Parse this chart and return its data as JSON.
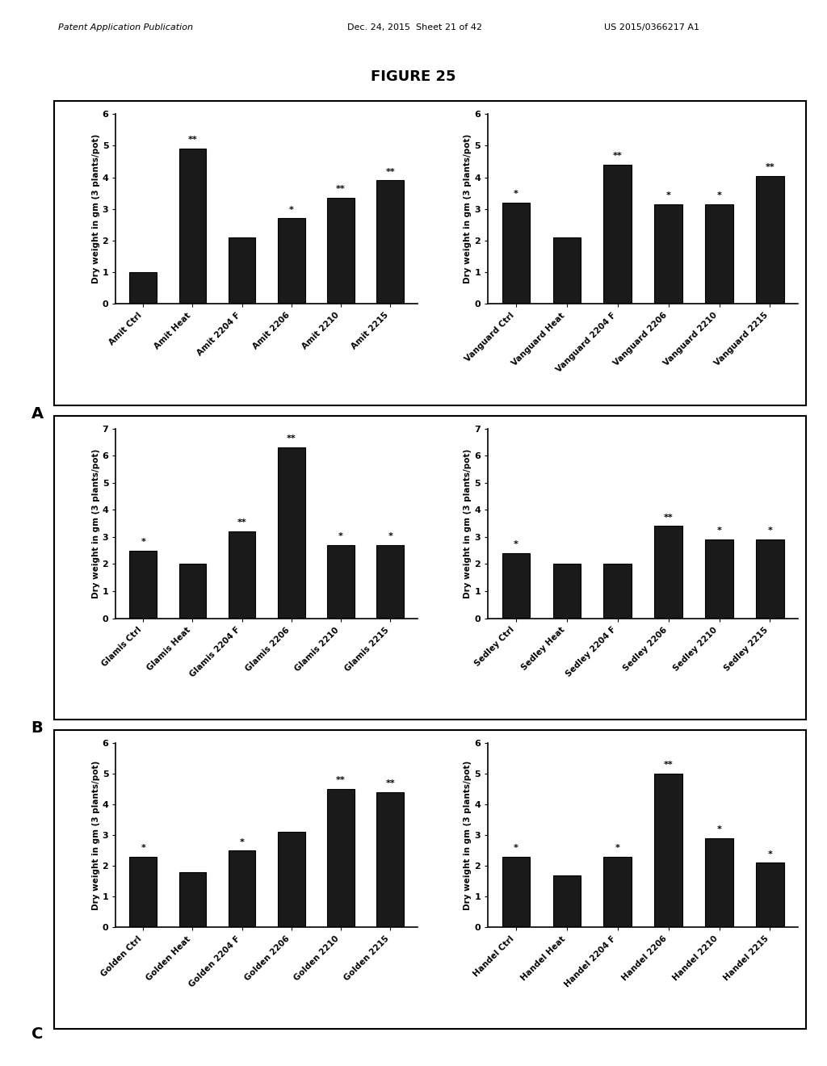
{
  "figure_title": "FIGURE 25",
  "header_left": "Patent Application Publication",
  "header_mid": "Dec. 24, 2015  Sheet 21 of 42",
  "header_right": "US 2015/0366217 A1",
  "subplots": [
    {
      "panel": "A_left",
      "categories": [
        "Amit Ctrl",
        "Amit Heat",
        "Amit 2204 F",
        "Amit 2206",
        "Amit 2210",
        "Amit 2215"
      ],
      "bar_values": [
        1.0,
        4.9,
        2.1,
        2.7,
        3.35,
        3.9
      ],
      "annotations": [
        "",
        "**",
        "",
        "*",
        "**",
        "**"
      ],
      "ylim": [
        0,
        6
      ],
      "yticks": [
        0,
        1,
        2,
        3,
        4,
        5,
        6
      ],
      "ylabel": "Dry weight in gm (3 plants/pot)"
    },
    {
      "panel": "A_right",
      "categories": [
        "Vanguard Ctrl",
        "Vanguard Heat",
        "Vanguard 2204 F",
        "Vanguard 2206",
        "Vanguard 2210",
        "Vanguard 2215"
      ],
      "bar_values": [
        3.2,
        2.1,
        4.4,
        3.15,
        3.15,
        4.05
      ],
      "annotations": [
        "*",
        "",
        "**",
        "*",
        "*",
        "**"
      ],
      "ylim": [
        0,
        6
      ],
      "yticks": [
        0,
        1,
        2,
        3,
        4,
        5,
        6
      ],
      "ylabel": "Dry weight in gm (3 plants/pot)"
    },
    {
      "panel": "B_left",
      "categories": [
        "Glamis Ctrl",
        "Glamis Heat",
        "Glamis 2204 F",
        "Glamis 2206",
        "Glamis 2210",
        "Glamis 2215"
      ],
      "bar_values": [
        2.5,
        2.0,
        3.2,
        6.3,
        2.7,
        2.7
      ],
      "annotations": [
        "*",
        "",
        "**",
        "**",
        "*",
        "*"
      ],
      "ylim": [
        0,
        7
      ],
      "yticks": [
        0,
        1,
        2,
        3,
        4,
        5,
        6,
        7
      ],
      "ylabel": "Dry weight in gm (3 plants/pot)"
    },
    {
      "panel": "B_right",
      "categories": [
        "Sedley Ctrl",
        "Sedley Heat",
        "Sedley 2204 F",
        "Sedley 2206",
        "Sedley 2210",
        "Sedley 2215"
      ],
      "bar_values": [
        2.4,
        2.0,
        2.0,
        3.4,
        2.9,
        2.9
      ],
      "annotations": [
        "*",
        "",
        "",
        "**",
        "*",
        "*"
      ],
      "ylim": [
        0,
        7
      ],
      "yticks": [
        0,
        1,
        2,
        3,
        4,
        5,
        6,
        7
      ],
      "ylabel": "Dry weight in gm (3 plants/pot)"
    },
    {
      "panel": "C_left",
      "categories": [
        "Golden Ctrl",
        "Golden Heat",
        "Golden 2204 F",
        "Golden 2206",
        "Golden 2210",
        "Golden 2215"
      ],
      "bar_values": [
        2.3,
        1.8,
        2.5,
        3.1,
        4.5,
        4.4
      ],
      "annotations": [
        "*",
        "",
        "*",
        "",
        "**",
        "**"
      ],
      "ylim": [
        0,
        6
      ],
      "yticks": [
        0,
        1,
        2,
        3,
        4,
        5,
        6
      ],
      "ylabel": "Dry weight in gm (3 plants/pot)"
    },
    {
      "panel": "C_right",
      "categories": [
        "Handel Ctrl",
        "Handel Heat",
        "Handel 2204 F",
        "Handel 2206",
        "Handel 2210",
        "Handel 2215"
      ],
      "bar_values": [
        2.3,
        1.7,
        2.3,
        5.0,
        2.9,
        2.1
      ],
      "annotations": [
        "*",
        "",
        "*",
        "**",
        "*",
        "*"
      ],
      "ylim": [
        0,
        6
      ],
      "yticks": [
        0,
        1,
        2,
        3,
        4,
        5,
        6
      ],
      "ylabel": "Dry weight in gm (3 plants/pot)"
    }
  ],
  "panel_labels": [
    "A",
    "B",
    "C"
  ],
  "bar_color": "#1a1a1a",
  "bar_edge_color": "#000000",
  "background_color": "#ffffff"
}
